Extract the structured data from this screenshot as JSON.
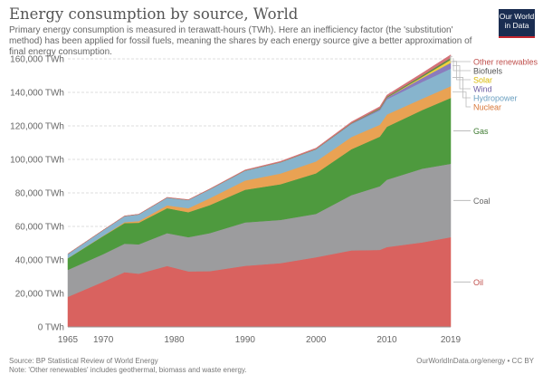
{
  "header": {
    "title": "Energy consumption by source, World",
    "subtitle": "Primary energy consumption is measured in terawatt-hours (TWh). Here an inefficiency factor (the 'substitution' method) has been applied for fossil fuels, meaning the shares by each energy source give a better approximation of final energy consumption.",
    "logo_text": "Our World in Data"
  },
  "footer": {
    "source": "Source: BP Statistical Review of World Energy",
    "note": "Note: 'Other renewables' includes geothermal, biomass and waste energy.",
    "credit": "OurWorldInData.org/energy • CC BY"
  },
  "chart_data": {
    "type": "area",
    "stacked": true,
    "title": "Energy consumption by source, World",
    "xlabel": "",
    "ylabel": "",
    "xlim": [
      1965,
      2019
    ],
    "ylim": [
      0,
      160000
    ],
    "x_ticks": [
      "1965",
      "1970",
      "1980",
      "1990",
      "2000",
      "2010",
      "2019"
    ],
    "y_ticks": [
      "0 TWh",
      "20,000 TWh",
      "40,000 TWh",
      "60,000 TWh",
      "80,000 TWh",
      "100,000 TWh",
      "120,000 TWh",
      "140,000 TWh",
      "160,000 TWh"
    ],
    "grid": "horizontal dotted",
    "legend": "right, inline labels",
    "x": [
      1965,
      1970,
      1973,
      1975,
      1979,
      1982,
      1985,
      1990,
      1995,
      2000,
      2005,
      2009,
      2010,
      2015,
      2019
    ],
    "series": [
      {
        "name": "Oil",
        "color": "#d9625f",
        "label_color": "#c0504d",
        "values": [
          18000,
          27000,
          32700,
          31800,
          36400,
          33200,
          33300,
          36500,
          38100,
          41600,
          45700,
          46000,
          47700,
          50500,
          53600
        ]
      },
      {
        "name": "Coal",
        "color": "#9c9c9e",
        "label_color": "#666666",
        "values": [
          16100,
          16500,
          17000,
          17500,
          19600,
          20400,
          22700,
          25900,
          25800,
          25900,
          33000,
          38000,
          40200,
          44000,
          43800
        ]
      },
      {
        "name": "Gas",
        "color": "#4e9a3e",
        "label_color": "#3d7a30",
        "values": [
          6900,
          10800,
          12300,
          12900,
          14900,
          14900,
          16700,
          19500,
          21300,
          24200,
          27400,
          29600,
          31600,
          35000,
          39300
        ]
      },
      {
        "name": "Nuclear",
        "color": "#e9a253",
        "label_color": "#d8783a",
        "values": [
          70,
          210,
          560,
          1000,
          1700,
          2400,
          4100,
          5500,
          6400,
          7100,
          7300,
          7100,
          7300,
          6800,
          7000
        ]
      },
      {
        "name": "Hydropower",
        "color": "#87b4cd",
        "label_color": "#6a9fc0",
        "values": [
          2500,
          3300,
          3600,
          4000,
          4600,
          4900,
          5300,
          5900,
          6700,
          7200,
          7800,
          8600,
          9100,
          10000,
          10500
        ]
      },
      {
        "name": "Wind",
        "color": "#8b7bbd",
        "label_color": "#6e5ea3",
        "values": [
          0,
          0,
          0,
          0,
          0,
          0,
          1,
          10,
          20,
          80,
          270,
          730,
          910,
          2300,
          3500
        ]
      },
      {
        "name": "Solar",
        "color": "#f0d23c",
        "label_color": "#d8b800",
        "values": [
          0,
          0,
          0,
          0,
          0,
          0,
          0,
          0,
          0,
          3,
          10,
          50,
          90,
          700,
          1800
        ]
      },
      {
        "name": "Biofuels",
        "color": "#5d8a4b",
        "label_color": "#555555",
        "values": [
          0,
          0,
          0,
          0,
          5,
          10,
          40,
          70,
          90,
          110,
          230,
          500,
          550,
          870,
          1100
        ]
      },
      {
        "name": "Other renewables",
        "color": "#d47379",
        "label_color": "#c0504d",
        "values": [
          60,
          90,
          110,
          130,
          160,
          180,
          250,
          350,
          450,
          550,
          700,
          900,
          950,
          1400,
          1800
        ]
      }
    ]
  }
}
